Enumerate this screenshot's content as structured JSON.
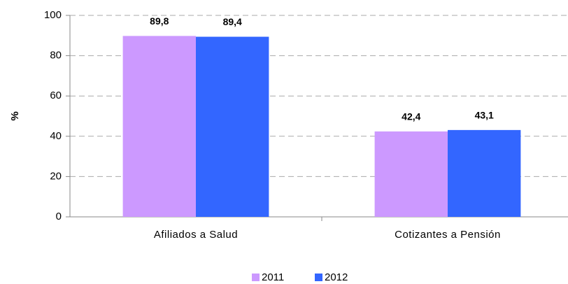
{
  "chart_data": {
    "type": "bar",
    "y_label": "%",
    "categories": [
      "Afiliados a Salud",
      "Cotizantes a Pensión"
    ],
    "series": [
      {
        "name": "2011",
        "color": "#cc99ff",
        "values": [
          89.8,
          42.4
        ],
        "value_labels": [
          "89,8",
          "42,4"
        ]
      },
      {
        "name": "2012",
        "color": "#3366ff",
        "values": [
          89.4,
          43.1
        ],
        "value_labels": [
          "89,4",
          "43,1"
        ]
      }
    ],
    "ylim": [
      0,
      100
    ],
    "yticks": [
      0,
      20,
      40,
      60,
      80,
      100
    ],
    "grid": true,
    "legend": "bottom"
  }
}
